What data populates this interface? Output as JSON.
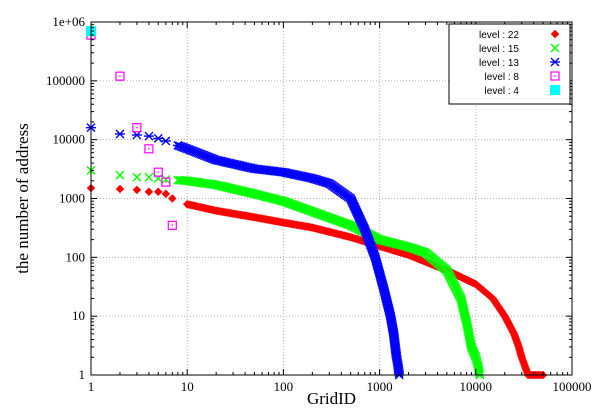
{
  "chart_data": {
    "type": "scatter",
    "title": "",
    "xlabel": "GridID",
    "ylabel": "the number of address",
    "x_scale": "log",
    "y_scale": "log",
    "xlim": [
      1,
      100000
    ],
    "ylim": [
      1,
      1000000
    ],
    "x_ticks": [
      1,
      10,
      100,
      1000,
      10000,
      100000
    ],
    "x_tick_labels": [
      "1",
      "10",
      "100",
      "1000",
      "10000",
      "100000"
    ],
    "y_ticks": [
      1,
      10,
      100,
      1000,
      10000,
      100000,
      1000000
    ],
    "y_tick_labels": [
      "1",
      "10",
      "100",
      "1000",
      "10000",
      "100000",
      "1e+06"
    ],
    "grid": true,
    "legend_position": "top-right",
    "series": [
      {
        "name": "level : 22",
        "color": "#ff0000",
        "marker": "diamond",
        "points": [
          [
            1,
            1500
          ],
          [
            2,
            1450
          ],
          [
            3,
            1400
          ],
          [
            4,
            1300
          ],
          [
            5,
            1300
          ],
          [
            6,
            1200
          ],
          [
            7,
            1000
          ],
          [
            10,
            800
          ],
          [
            20,
            620
          ],
          [
            50,
            480
          ],
          [
            100,
            390
          ],
          [
            200,
            320
          ],
          [
            500,
            220
          ],
          [
            1000,
            155
          ],
          [
            2000,
            110
          ],
          [
            5000,
            60
          ],
          [
            10000,
            35
          ],
          [
            15000,
            20
          ],
          [
            20000,
            10
          ],
          [
            25000,
            5
          ],
          [
            28000,
            3
          ],
          [
            30000,
            2
          ],
          [
            32000,
            1.5
          ],
          [
            35000,
            1
          ],
          [
            40000,
            1
          ],
          [
            45000,
            1
          ],
          [
            50000,
            1
          ]
        ]
      },
      {
        "name": "level : 15",
        "color": "#00ff00",
        "marker": "x",
        "points": [
          [
            1,
            3000
          ],
          [
            2,
            2500
          ],
          [
            3,
            2300
          ],
          [
            4,
            2300
          ],
          [
            5,
            2200
          ],
          [
            6,
            2100
          ],
          [
            8,
            2050
          ],
          [
            10,
            2000
          ],
          [
            20,
            1700
          ],
          [
            50,
            1200
          ],
          [
            100,
            900
          ],
          [
            200,
            600
          ],
          [
            500,
            350
          ],
          [
            1000,
            200
          ],
          [
            2000,
            150
          ],
          [
            3000,
            120
          ],
          [
            5000,
            60
          ],
          [
            7000,
            20
          ],
          [
            8000,
            8
          ],
          [
            9000,
            3
          ],
          [
            10000,
            2
          ],
          [
            10500,
            1.5
          ],
          [
            11000,
            1
          ]
        ]
      },
      {
        "name": "level : 13",
        "color": "#0000ff",
        "marker": "star",
        "points": [
          [
            1,
            16000
          ],
          [
            2,
            12500
          ],
          [
            3,
            12000
          ],
          [
            4,
            11500
          ],
          [
            5,
            10500
          ],
          [
            6,
            9500
          ],
          [
            8,
            8000
          ],
          [
            10,
            7000
          ],
          [
            20,
            4500
          ],
          [
            50,
            3200
          ],
          [
            100,
            2800
          ],
          [
            200,
            2200
          ],
          [
            300,
            1800
          ],
          [
            500,
            1000
          ],
          [
            700,
            300
          ],
          [
            900,
            100
          ],
          [
            1100,
            30
          ],
          [
            1300,
            10
          ],
          [
            1400,
            5
          ],
          [
            1500,
            2
          ],
          [
            1550,
            1.5
          ],
          [
            1600,
            1
          ]
        ]
      },
      {
        "name": "level : 8",
        "color": "#ff00ff",
        "marker": "square",
        "points": [
          [
            1,
            600000
          ],
          [
            2,
            120000
          ],
          [
            3,
            16000
          ],
          [
            4,
            7000
          ],
          [
            5,
            2800
          ],
          [
            6,
            1900
          ],
          [
            7,
            350
          ]
        ]
      },
      {
        "name": "level : 4",
        "color": "#00ffff",
        "marker": "filled-square",
        "points": [
          [
            1,
            700000
          ]
        ]
      }
    ]
  }
}
